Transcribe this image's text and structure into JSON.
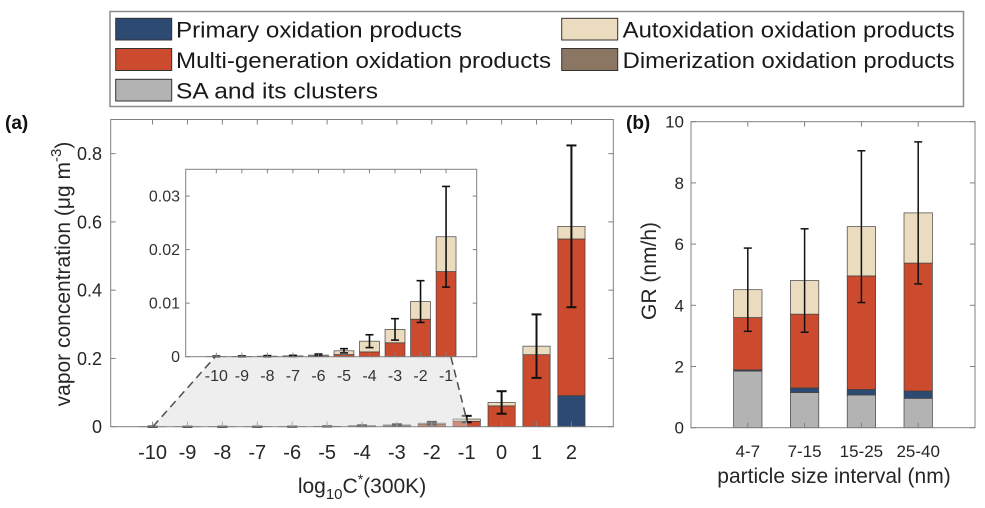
{
  "legend": {
    "items": [
      {
        "label": "Primary oxidation products",
        "color": "#2d4a73"
      },
      {
        "label": "Multi-generation oxidation products",
        "color": "#cc4b2f"
      },
      {
        "label": "SA and its clusters",
        "color": "#b3b3b3"
      },
      {
        "label": "Autoxidation oxidation products",
        "color": "#ecdcbf"
      },
      {
        "label": "Dimerization oxidation products",
        "color": "#8b7663"
      }
    ]
  },
  "panels": {
    "a_label": "(a)",
    "b_label": "(b)"
  },
  "chart_data": [
    {
      "type": "bar",
      "stacked": true,
      "title": "",
      "panel": "(a)",
      "xlabel": "log10C*(300K)",
      "xlabel_parts": {
        "base": "log",
        "sub": "10",
        "main": "C",
        "sup": "*",
        "tail": "(300K)"
      },
      "ylabel": "vapor concentration (μg m-3)",
      "ylabel_parts": {
        "main": "vapor concentration (μg m",
        "sup": "-3",
        "tail": ")"
      },
      "categories": [
        "-10",
        "-9",
        "-8",
        "-7",
        "-6",
        "-5",
        "-4",
        "-3",
        "-2",
        "-1",
        "0",
        "1",
        "2"
      ],
      "x": [
        -10,
        -9,
        -8,
        -7,
        -6,
        -5,
        -4,
        -3,
        -2,
        -1,
        0,
        1,
        2
      ],
      "xlim": [
        -11.2,
        3.2
      ],
      "ylim": [
        0,
        0.9
      ],
      "yticks": [
        0,
        0.2,
        0.4,
        0.6,
        0.8
      ],
      "ytick_labels": [
        "0",
        "0.2",
        "0.4",
        "0.6",
        "0.8"
      ],
      "grid": false,
      "series": [
        {
          "key": "primary",
          "name": "Primary oxidation products",
          "color": "#2d4a73",
          "values": [
            0,
            0,
            0,
            0,
            0,
            0,
            0,
            0,
            0,
            0,
            0,
            0,
            0.091
          ]
        },
        {
          "key": "multi",
          "name": "Multi-generation oxidation products",
          "color": "#cc4b2f",
          "values": [
            1e-05,
            2e-05,
            4e-05,
            6e-05,
            0.0001,
            0.0004,
            0.0009,
            0.0026,
            0.007,
            0.0159,
            0.061,
            0.211,
            0.459
          ]
        },
        {
          "key": "dimer",
          "name": "Dimerization oxidation products",
          "color": "#8b7663",
          "values": [
            0,
            0,
            0,
            0,
            0,
            0,
            0,
            0,
            0,
            0,
            0,
            0,
            0
          ]
        },
        {
          "key": "autox",
          "name": "Autoxidation oxidation products",
          "color": "#ecdcbf",
          "values": [
            1e-05,
            2e-05,
            6e-05,
            9e-05,
            0.0002,
            0.0007,
            0.002,
            0.0025,
            0.0033,
            0.0065,
            0.01,
            0.025,
            0.037
          ]
        }
      ],
      "errors": [
        0.0001,
        0.0001,
        0.0001,
        0.0001,
        0.0002,
        0.0004,
        0.0012,
        0.002,
        0.0039,
        0.0094,
        0.033,
        0.093,
        0.237
      ],
      "inset": {
        "categories": [
          "-10",
          "-9",
          "-8",
          "-7",
          "-6",
          "-5",
          "-4",
          "-3",
          "-2",
          "-1"
        ],
        "xlim": [
          -11.2,
          0.2
        ],
        "ylim": [
          0,
          0.035
        ],
        "yticks": [
          0,
          0.01,
          0.02,
          0.03
        ],
        "ytick_labels": [
          "0",
          "0.01",
          "0.02",
          "0.03"
        ]
      }
    },
    {
      "type": "bar",
      "stacked": true,
      "title": "",
      "panel": "(b)",
      "xlabel": "particle size interval (nm)",
      "ylabel": "GR (nm/h)",
      "categories": [
        "4-7",
        "7-15",
        "15-25",
        "25-40"
      ],
      "x": [
        1,
        2,
        3,
        4
      ],
      "xlim": [
        0,
        5
      ],
      "ylim": [
        0,
        10
      ],
      "yticks": [
        0,
        2,
        4,
        6,
        8,
        10
      ],
      "ytick_labels": [
        "0",
        "2",
        "4",
        "6",
        "8",
        "10"
      ],
      "grid": false,
      "series": [
        {
          "key": "sa",
          "name": "SA and its clusters",
          "color": "#b3b3b3",
          "values": [
            1.85,
            1.15,
            1.07,
            0.96
          ]
        },
        {
          "key": "primary",
          "name": "Primary oxidation products",
          "color": "#2d4a73",
          "values": [
            0.04,
            0.15,
            0.18,
            0.24
          ]
        },
        {
          "key": "multi",
          "name": "Multi-generation oxidation products",
          "color": "#cc4b2f",
          "values": [
            1.71,
            2.41,
            3.71,
            4.18
          ]
        },
        {
          "key": "dimer",
          "name": "Dimerization oxidation products",
          "color": "#8b7663",
          "values": [
            0,
            0,
            0,
            0
          ]
        },
        {
          "key": "autox",
          "name": "Autoxidation oxidation products",
          "color": "#ecdcbf",
          "values": [
            0.91,
            1.1,
            1.61,
            1.64
          ]
        }
      ],
      "errors": [
        1.36,
        1.69,
        2.48,
        2.32
      ]
    }
  ]
}
